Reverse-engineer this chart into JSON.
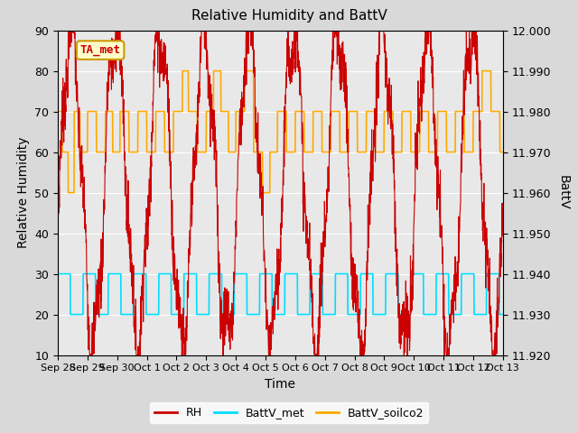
{
  "title": "Relative Humidity and BattV",
  "ylabel_left": "Relative Humidity",
  "ylabel_right": "BattV",
  "xlabel": "Time",
  "ylim_left": [
    10,
    90
  ],
  "ylim_right": [
    11.92,
    12.0
  ],
  "annotation_text": "TA_met",
  "annotation_color": "#cc0000",
  "annotation_bg": "#ffffcc",
  "annotation_border": "#cc9900",
  "fig_bg_color": "#d9d9d9",
  "plot_bg_color": "#d9d9d9",
  "axes_bg_color": "#e8e8e8",
  "rh_color": "#cc0000",
  "battv_met_color": "#00ddff",
  "battv_soilco2_color": "#ffaa00",
  "legend_rh_label": "RH",
  "legend_met_label": "BattV_met",
  "legend_soilco2_label": "BattV_soilco2",
  "x_tick_labels": [
    "Sep 28",
    "Sep 29",
    "Sep 30",
    "Oct 1",
    "Oct 2",
    "Oct 3",
    "Oct 4",
    "Oct 5",
    "Oct 6",
    "Oct 7",
    "Oct 8",
    "Oct 9",
    "Oct 10",
    "Oct 11",
    "Oct 12",
    "Oct 13"
  ],
  "x_tick_positions": [
    0,
    1,
    2,
    3,
    4,
    5,
    6,
    7,
    8,
    9,
    10,
    11,
    12,
    13,
    14,
    15
  ],
  "rh_yticks": [
    10,
    20,
    30,
    40,
    50,
    60,
    70,
    80,
    90
  ],
  "right_yticks": [
    11.92,
    11.93,
    11.94,
    11.95,
    11.96,
    11.97,
    11.98,
    11.99,
    12.0
  ],
  "grid_color": "#ffffff",
  "title_fontsize": 11,
  "label_fontsize": 10,
  "tick_fontsize": 9
}
